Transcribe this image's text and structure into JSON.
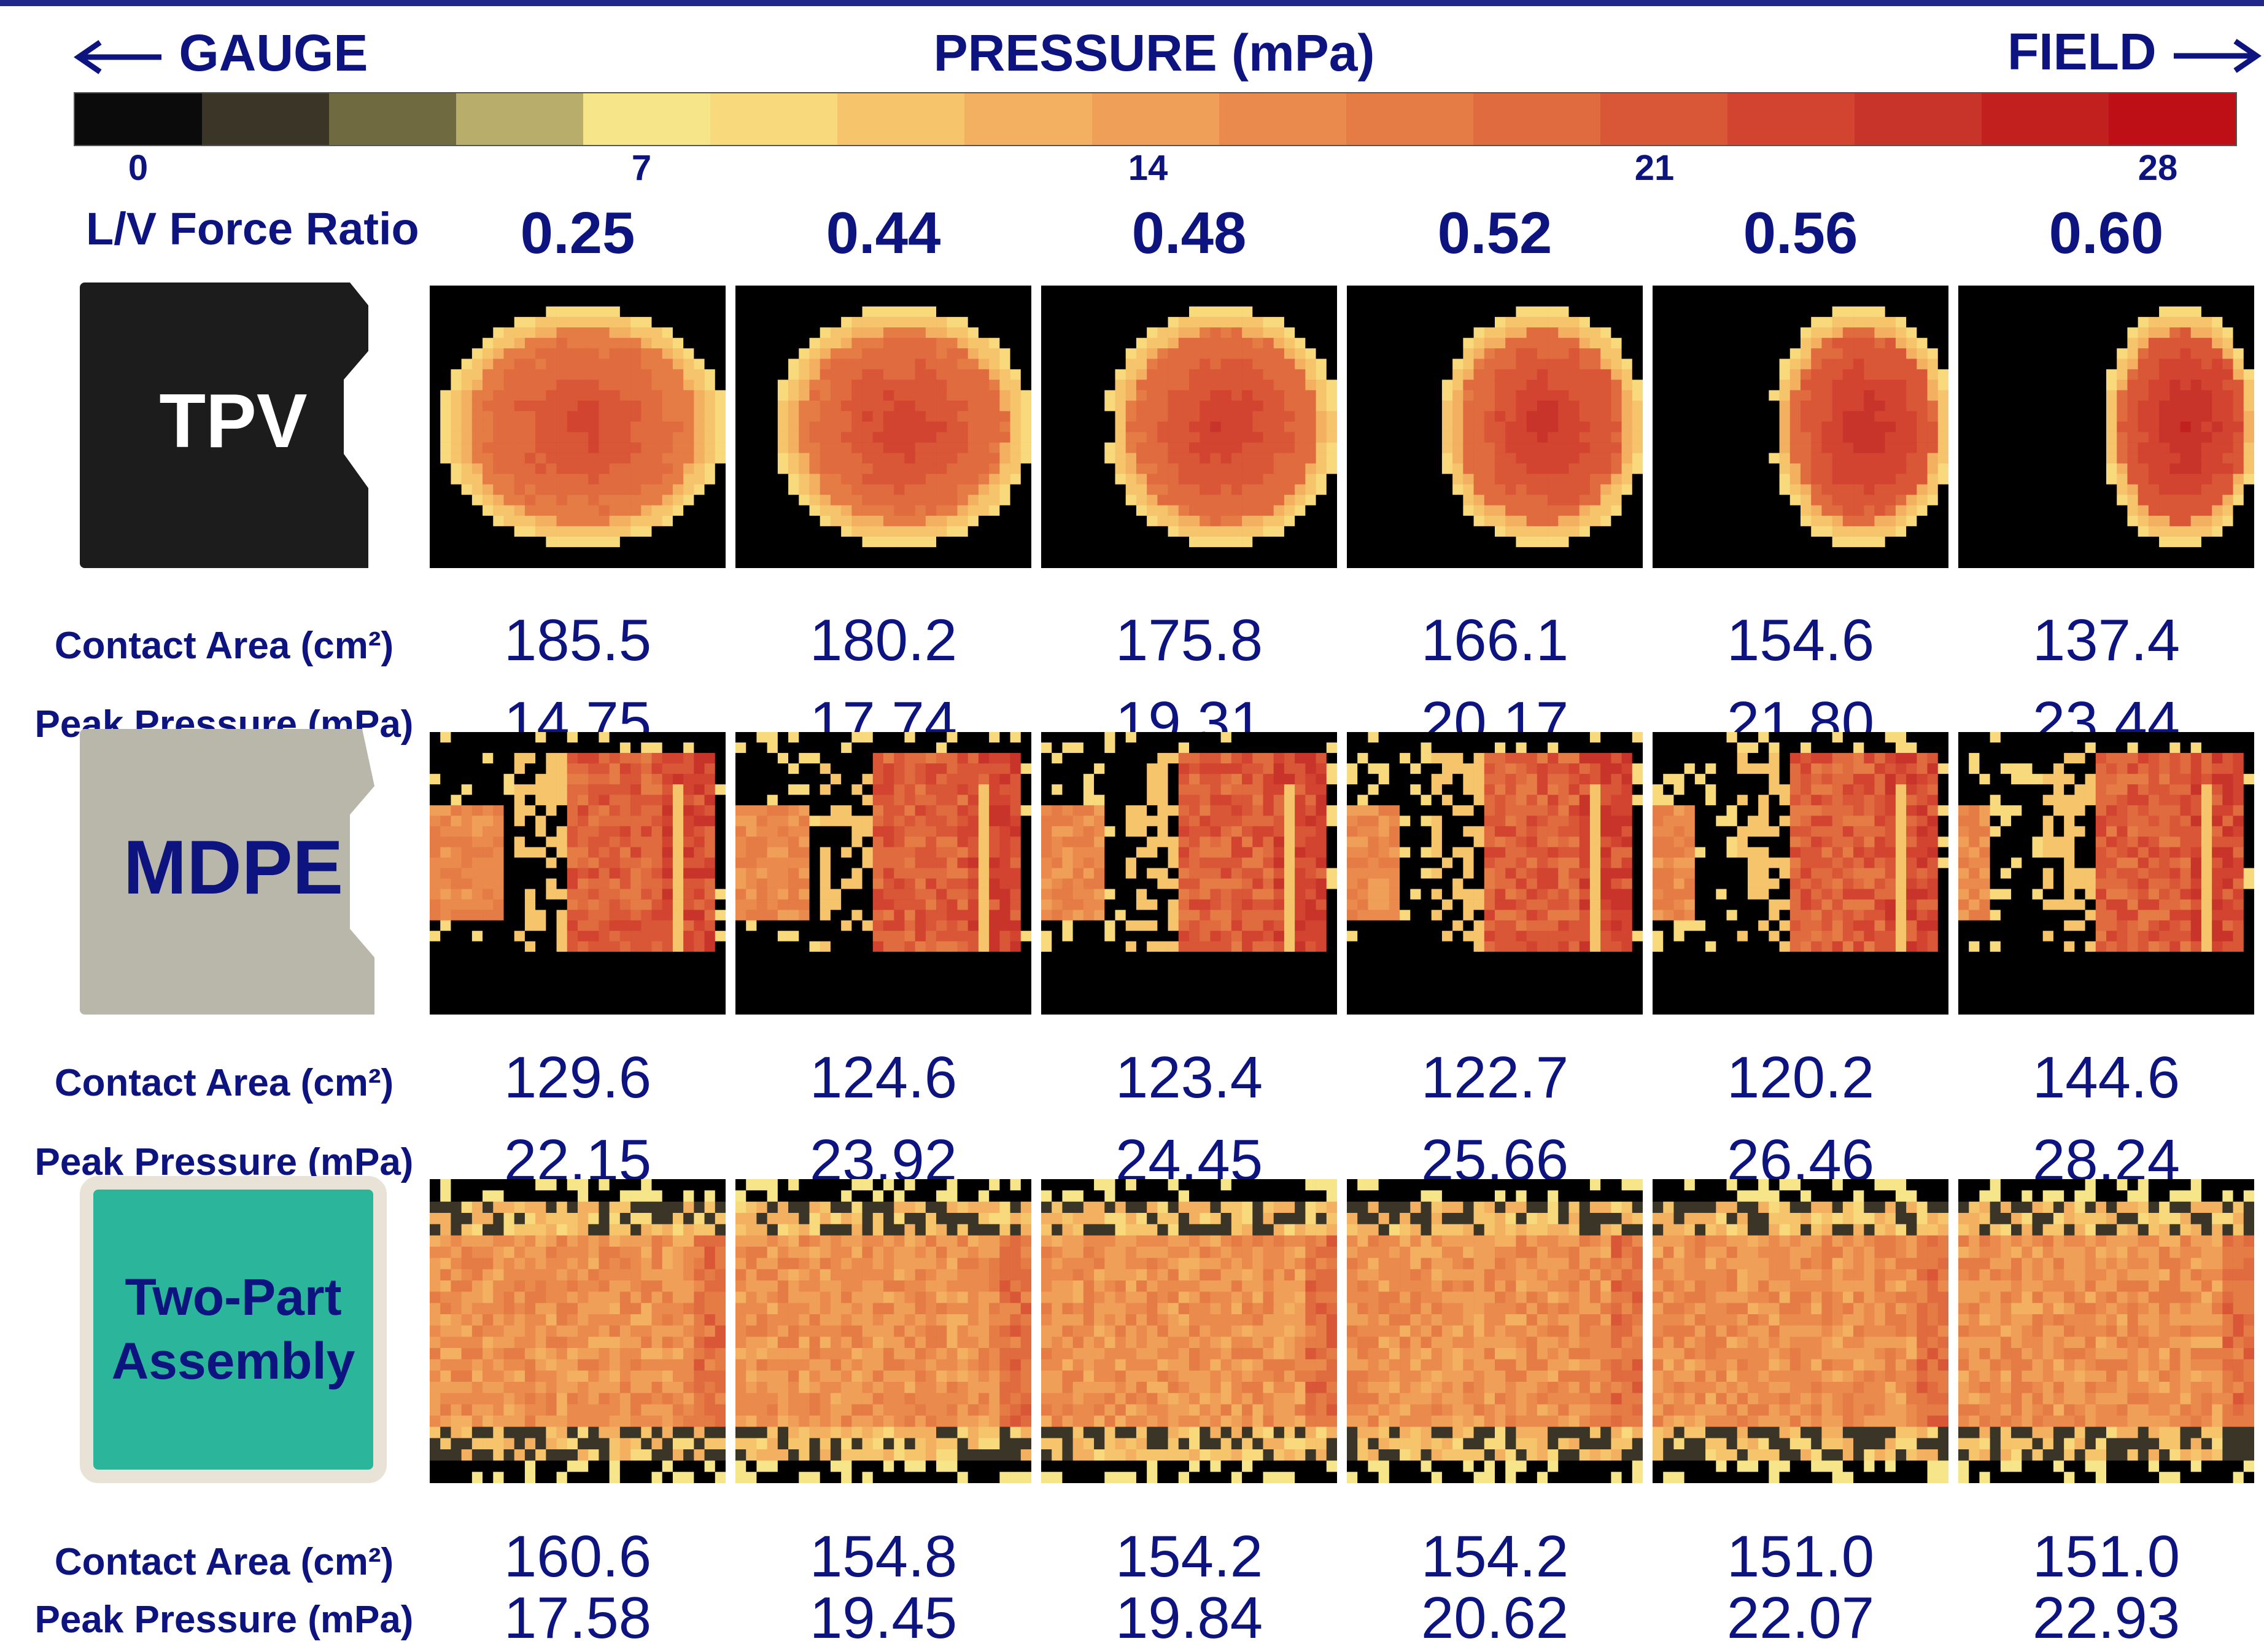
{
  "header": {
    "left_label": "GAUGE",
    "title": "PRESSURE (mPa)",
    "right_label": "FIELD"
  },
  "color_scale": {
    "colors": [
      "#0b0b0b",
      "#3a3527",
      "#6f6a3f",
      "#b9ad6c",
      "#f7e58a",
      "#f8d97c",
      "#f6c46a",
      "#f3b060",
      "#ef9f57",
      "#ea8a4c",
      "#e57b45",
      "#df6b3e",
      "#d95636",
      "#d24430",
      "#c9342a",
      "#c21f1f",
      "#bd0f15"
    ],
    "ticks": [
      "0",
      "7",
      "14",
      "21",
      "28"
    ]
  },
  "ratio_label": "L/V Force Ratio",
  "ratios": [
    "0.25",
    "0.44",
    "0.48",
    "0.52",
    "0.56",
    "0.60"
  ],
  "rows": [
    {
      "sample": "TPV",
      "sample_color": "#1c1c1c",
      "contact_label": "Contact Area (cm²)",
      "peak_label": "Peak Pressure (mPa)",
      "contact_area": [
        "185.5",
        "180.2",
        "175.8",
        "166.1",
        "154.6",
        "137.4"
      ],
      "peak_pressure": [
        "14.75",
        "17.74",
        "19.31",
        "20.17",
        "21.80",
        "23.44"
      ]
    },
    {
      "sample": "MDPE",
      "sample_color": "#b9b6aa",
      "contact_label": "Contact Area (cm²)",
      "peak_label": "Peak Pressure (mPa)",
      "contact_area": [
        "129.6",
        "124.6",
        "123.4",
        "122.7",
        "120.2",
        "144.6"
      ],
      "peak_pressure": [
        "22.15",
        "23.92",
        "24.45",
        "25.66",
        "26.46",
        "28.24"
      ]
    },
    {
      "sample": "Two-Part Assembly",
      "sample_color": "#2bb69c",
      "contact_label": "Contact Area (cm²)",
      "peak_label": "Peak Pressure (mPa)",
      "contact_area": [
        "160.6",
        "154.8",
        "154.2",
        "154.2",
        "151.0",
        "151.0"
      ],
      "peak_pressure": [
        "17.58",
        "19.45",
        "19.84",
        "20.62",
        "22.07",
        "22.93"
      ]
    }
  ]
}
